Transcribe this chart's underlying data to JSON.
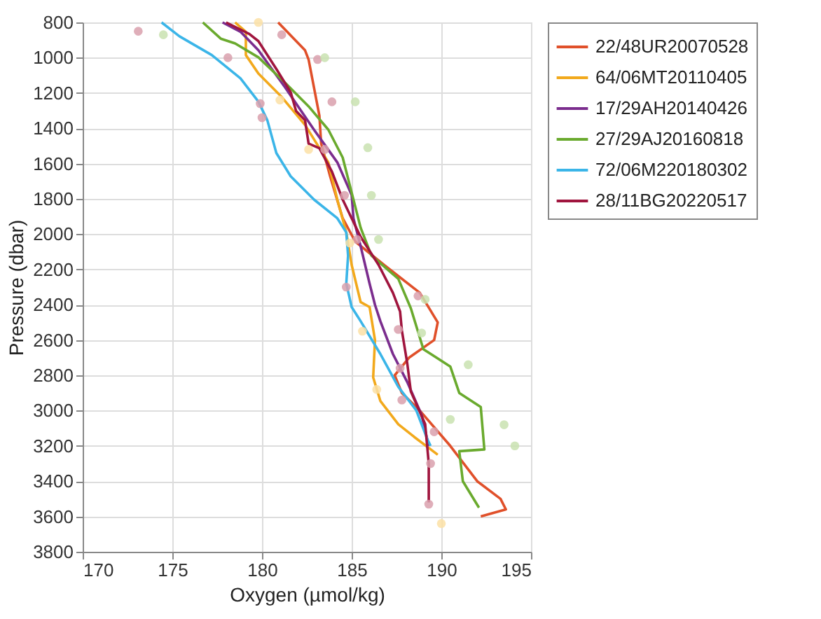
{
  "chart_data": {
    "type": "line",
    "xlabel": "Oxygen (µmol/kg)",
    "ylabel": "Pressure (dbar)",
    "xlim": [
      170,
      195
    ],
    "xticks": [
      170,
      175,
      180,
      185,
      190,
      195
    ],
    "ylim": [
      3800,
      800
    ],
    "yticks": [
      800,
      1000,
      1200,
      1400,
      1600,
      1800,
      2000,
      2200,
      2400,
      2600,
      2800,
      3000,
      3200,
      3400,
      3600,
      3800
    ],
    "grid": true,
    "legend": "right",
    "marker": "none",
    "line_style": "solid",
    "series": [
      {
        "name": "22/48UR20070528",
        "color": "#e0502a",
        "x": [
          180.9,
          182.4,
          182.6,
          183.2,
          183.3,
          183.8,
          184.5,
          185.2,
          186.8,
          188.8,
          189.8,
          189.6,
          188.2,
          187.4,
          187.8,
          188.8,
          190.5,
          192.0,
          193.3,
          193.6,
          192.2
        ],
        "values": [
          800,
          958,
          1011,
          1328,
          1487,
          1672,
          1910,
          2042,
          2174,
          2332,
          2500,
          2600,
          2700,
          2800,
          2900,
          3000,
          3200,
          3400,
          3500,
          3560,
          3600
        ]
      },
      {
        "name": "64/06MT20110405",
        "color": "#f2a91c",
        "x": [
          178.5,
          179.1,
          179.1,
          179.8,
          181.1,
          182.4,
          183.7,
          184.2,
          184.7,
          185.0,
          185.5,
          186.0,
          186.3,
          186.2,
          186.6,
          187.6,
          188.5,
          189.8
        ],
        "values": [
          800,
          853,
          985,
          1090,
          1223,
          1381,
          1593,
          1804,
          1990,
          2174,
          2385,
          2413,
          2600,
          2812,
          2945,
          3077,
          3150,
          3250
        ]
      },
      {
        "name": "17/29AH20140426",
        "color": "#7b2d8e",
        "x": [
          177.8,
          178.8,
          179.8,
          181.3,
          182.9,
          184.2,
          185.0,
          185.1,
          185.5,
          186.0,
          186.3,
          186.6,
          187.3,
          188.1,
          188.9,
          189.2,
          189.3
        ],
        "values": [
          800,
          853,
          958,
          1170,
          1408,
          1593,
          1778,
          1910,
          2068,
          2280,
          2400,
          2493,
          2679,
          2838,
          3024,
          3157,
          3200
        ]
      },
      {
        "name": "27/29AJ20160818",
        "color": "#6aaa2e",
        "x": [
          176.7,
          177.7,
          178.5,
          179.8,
          181.3,
          182.6,
          183.7,
          184.5,
          185.1,
          185.5,
          186.1,
          187.6,
          188.3,
          189.0,
          190.5,
          191.0,
          192.2,
          192.4,
          191.0,
          191.2,
          192.1
        ],
        "values": [
          800,
          892,
          919,
          998,
          1143,
          1276,
          1408,
          1566,
          1804,
          1963,
          2121,
          2253,
          2420,
          2652,
          2750,
          2900,
          2980,
          3220,
          3230,
          3400,
          3550
        ]
      },
      {
        "name": "72/06M220180302",
        "color": "#3bb5e8",
        "x": [
          174.4,
          175.4,
          177.2,
          178.8,
          179.8,
          180.3,
          180.8,
          181.6,
          182.9,
          184.2,
          184.7,
          184.8,
          184.7,
          185.0,
          185.5,
          186.6,
          187.6,
          188.6,
          189.2,
          189.4
        ],
        "values": [
          800,
          879,
          985,
          1117,
          1249,
          1355,
          1540,
          1672,
          1804,
          1910,
          1990,
          2121,
          2280,
          2413,
          2493,
          2679,
          2865,
          2998,
          3157,
          3200
        ]
      },
      {
        "name": "28/11BG20220517",
        "color": "#a0153e",
        "x": [
          178.0,
          179.3,
          179.8,
          180.8,
          181.6,
          181.9,
          182.4,
          182.6,
          183.2,
          183.9,
          184.5,
          185.0,
          185.5,
          186.5,
          187.3,
          187.7,
          187.8,
          188.1,
          188.3,
          189.1,
          189.3,
          189.3
        ],
        "values": [
          800,
          866,
          906,
          1064,
          1196,
          1302,
          1355,
          1487,
          1513,
          1646,
          1804,
          1910,
          2015,
          2174,
          2332,
          2438,
          2546,
          2732,
          2891,
          3077,
          3300,
          3520
        ]
      },
      {
        "type": "scatter",
        "marker": "circle",
        "color": "#d9a0ad",
        "x": [
          173.1,
          178.1,
          179.9,
          180.0,
          183.1,
          183.9,
          183.5,
          184.6,
          185.3,
          188.7,
          187.6,
          187.7,
          187.8,
          189.6,
          189.4,
          189.3,
          181.1,
          184.7
        ],
        "values": [
          850,
          1000,
          1260,
          1340,
          1010,
          1250,
          1520,
          1780,
          2030,
          2350,
          2540,
          2760,
          2940,
          3120,
          3300,
          3530,
          870,
          2300
        ]
      },
      {
        "type": "scatter",
        "marker": "circle",
        "color": "#c9e2b0",
        "x": [
          174.5,
          183.5,
          185.2,
          185.9,
          186.1,
          186.5,
          189.1,
          191.5,
          190.5,
          193.5,
          194.1,
          188.9
        ],
        "values": [
          870,
          1000,
          1250,
          1510,
          1780,
          2030,
          2370,
          2740,
          3050,
          3080,
          3200,
          2560
        ]
      },
      {
        "type": "scatter",
        "marker": "circle",
        "color": "#fbe0a6",
        "x": [
          179.8,
          181.0,
          182.6,
          184.9,
          185.6,
          186.4,
          190.0
        ],
        "values": [
          800,
          1240,
          1520,
          2050,
          2550,
          2880,
          3640
        ]
      }
    ]
  }
}
